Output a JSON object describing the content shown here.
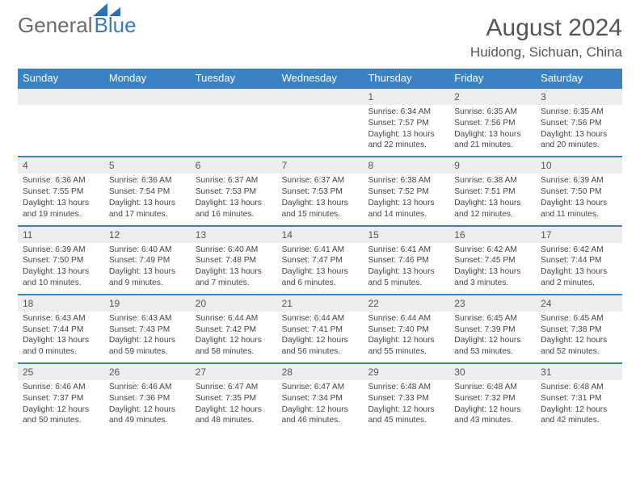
{
  "logo": {
    "word1": "General",
    "word2": "Blue",
    "color_gray": "#6b6b6b",
    "color_blue": "#3a7ac0"
  },
  "title": "August 2024",
  "subtitle": "Huidong, Sichuan, China",
  "colors": {
    "header_bg": "#3b82c4",
    "header_text": "#ffffff",
    "daynum_bg": "#ededed",
    "border": "#3b82c4",
    "body_text": "#444444"
  },
  "dayNames": [
    "Sunday",
    "Monday",
    "Tuesday",
    "Wednesday",
    "Thursday",
    "Friday",
    "Saturday"
  ],
  "weeks": [
    [
      {},
      {},
      {},
      {},
      {
        "n": "1",
        "sr": "Sunrise: 6:34 AM",
        "ss": "Sunset: 7:57 PM",
        "dl": "Daylight: 13 hours and 22 minutes."
      },
      {
        "n": "2",
        "sr": "Sunrise: 6:35 AM",
        "ss": "Sunset: 7:56 PM",
        "dl": "Daylight: 13 hours and 21 minutes."
      },
      {
        "n": "3",
        "sr": "Sunrise: 6:35 AM",
        "ss": "Sunset: 7:56 PM",
        "dl": "Daylight: 13 hours and 20 minutes."
      }
    ],
    [
      {
        "n": "4",
        "sr": "Sunrise: 6:36 AM",
        "ss": "Sunset: 7:55 PM",
        "dl": "Daylight: 13 hours and 19 minutes."
      },
      {
        "n": "5",
        "sr": "Sunrise: 6:36 AM",
        "ss": "Sunset: 7:54 PM",
        "dl": "Daylight: 13 hours and 17 minutes."
      },
      {
        "n": "6",
        "sr": "Sunrise: 6:37 AM",
        "ss": "Sunset: 7:53 PM",
        "dl": "Daylight: 13 hours and 16 minutes."
      },
      {
        "n": "7",
        "sr": "Sunrise: 6:37 AM",
        "ss": "Sunset: 7:53 PM",
        "dl": "Daylight: 13 hours and 15 minutes."
      },
      {
        "n": "8",
        "sr": "Sunrise: 6:38 AM",
        "ss": "Sunset: 7:52 PM",
        "dl": "Daylight: 13 hours and 14 minutes."
      },
      {
        "n": "9",
        "sr": "Sunrise: 6:38 AM",
        "ss": "Sunset: 7:51 PM",
        "dl": "Daylight: 13 hours and 12 minutes."
      },
      {
        "n": "10",
        "sr": "Sunrise: 6:39 AM",
        "ss": "Sunset: 7:50 PM",
        "dl": "Daylight: 13 hours and 11 minutes."
      }
    ],
    [
      {
        "n": "11",
        "sr": "Sunrise: 6:39 AM",
        "ss": "Sunset: 7:50 PM",
        "dl": "Daylight: 13 hours and 10 minutes."
      },
      {
        "n": "12",
        "sr": "Sunrise: 6:40 AM",
        "ss": "Sunset: 7:49 PM",
        "dl": "Daylight: 13 hours and 9 minutes."
      },
      {
        "n": "13",
        "sr": "Sunrise: 6:40 AM",
        "ss": "Sunset: 7:48 PM",
        "dl": "Daylight: 13 hours and 7 minutes."
      },
      {
        "n": "14",
        "sr": "Sunrise: 6:41 AM",
        "ss": "Sunset: 7:47 PM",
        "dl": "Daylight: 13 hours and 6 minutes."
      },
      {
        "n": "15",
        "sr": "Sunrise: 6:41 AM",
        "ss": "Sunset: 7:46 PM",
        "dl": "Daylight: 13 hours and 5 minutes."
      },
      {
        "n": "16",
        "sr": "Sunrise: 6:42 AM",
        "ss": "Sunset: 7:45 PM",
        "dl": "Daylight: 13 hours and 3 minutes."
      },
      {
        "n": "17",
        "sr": "Sunrise: 6:42 AM",
        "ss": "Sunset: 7:44 PM",
        "dl": "Daylight: 13 hours and 2 minutes."
      }
    ],
    [
      {
        "n": "18",
        "sr": "Sunrise: 6:43 AM",
        "ss": "Sunset: 7:44 PM",
        "dl": "Daylight: 13 hours and 0 minutes."
      },
      {
        "n": "19",
        "sr": "Sunrise: 6:43 AM",
        "ss": "Sunset: 7:43 PM",
        "dl": "Daylight: 12 hours and 59 minutes."
      },
      {
        "n": "20",
        "sr": "Sunrise: 6:44 AM",
        "ss": "Sunset: 7:42 PM",
        "dl": "Daylight: 12 hours and 58 minutes."
      },
      {
        "n": "21",
        "sr": "Sunrise: 6:44 AM",
        "ss": "Sunset: 7:41 PM",
        "dl": "Daylight: 12 hours and 56 minutes."
      },
      {
        "n": "22",
        "sr": "Sunrise: 6:44 AM",
        "ss": "Sunset: 7:40 PM",
        "dl": "Daylight: 12 hours and 55 minutes."
      },
      {
        "n": "23",
        "sr": "Sunrise: 6:45 AM",
        "ss": "Sunset: 7:39 PM",
        "dl": "Daylight: 12 hours and 53 minutes."
      },
      {
        "n": "24",
        "sr": "Sunrise: 6:45 AM",
        "ss": "Sunset: 7:38 PM",
        "dl": "Daylight: 12 hours and 52 minutes."
      }
    ],
    [
      {
        "n": "25",
        "sr": "Sunrise: 6:46 AM",
        "ss": "Sunset: 7:37 PM",
        "dl": "Daylight: 12 hours and 50 minutes."
      },
      {
        "n": "26",
        "sr": "Sunrise: 6:46 AM",
        "ss": "Sunset: 7:36 PM",
        "dl": "Daylight: 12 hours and 49 minutes."
      },
      {
        "n": "27",
        "sr": "Sunrise: 6:47 AM",
        "ss": "Sunset: 7:35 PM",
        "dl": "Daylight: 12 hours and 48 minutes."
      },
      {
        "n": "28",
        "sr": "Sunrise: 6:47 AM",
        "ss": "Sunset: 7:34 PM",
        "dl": "Daylight: 12 hours and 46 minutes."
      },
      {
        "n": "29",
        "sr": "Sunrise: 6:48 AM",
        "ss": "Sunset: 7:33 PM",
        "dl": "Daylight: 12 hours and 45 minutes."
      },
      {
        "n": "30",
        "sr": "Sunrise: 6:48 AM",
        "ss": "Sunset: 7:32 PM",
        "dl": "Daylight: 12 hours and 43 minutes."
      },
      {
        "n": "31",
        "sr": "Sunrise: 6:48 AM",
        "ss": "Sunset: 7:31 PM",
        "dl": "Daylight: 12 hours and 42 minutes."
      }
    ]
  ]
}
